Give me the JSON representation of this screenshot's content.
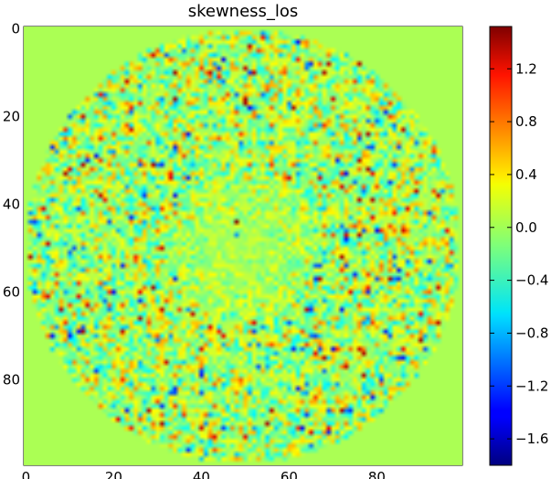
{
  "chart_data": {
    "type": "heatmap",
    "title": "skewness_los",
    "xlabel": "",
    "ylabel": "",
    "grid": {
      "nx": 100,
      "ny": 100
    },
    "xlim": [
      0,
      100
    ],
    "ylim": [
      100,
      0
    ],
    "x_ticks": [
      0,
      20,
      40,
      60,
      80
    ],
    "y_ticks": [
      0,
      20,
      40,
      60,
      80
    ],
    "x_tick_labels": [
      "0",
      "20",
      "40",
      "60",
      "80"
    ],
    "y_tick_labels": [
      "0",
      "20",
      "40",
      "60",
      "80"
    ],
    "colormap": "jet",
    "colorbar": {
      "vmin": -1.8,
      "vmax": 1.52,
      "ticks": [
        1.2,
        0.8,
        0.4,
        0.0,
        -0.4,
        -0.8,
        -1.2,
        -1.6
      ],
      "tick_labels": [
        "1.2",
        "0.8",
        "0.4",
        "0.0",
        "−0.4",
        "−0.8",
        "−1.2",
        "−1.6"
      ]
    },
    "pattern": {
      "background_value": 0.0,
      "disk_center": [
        49.5,
        49.5
      ],
      "disk_radius": 49.5,
      "inner_quiet_radius": 17,
      "noise_amplitude": 0.5,
      "highlight_points": [
        {
          "x": 48,
          "y": 44,
          "value": 1.5
        },
        {
          "x": 48,
          "y": 47,
          "value": -0.9
        }
      ]
    }
  }
}
